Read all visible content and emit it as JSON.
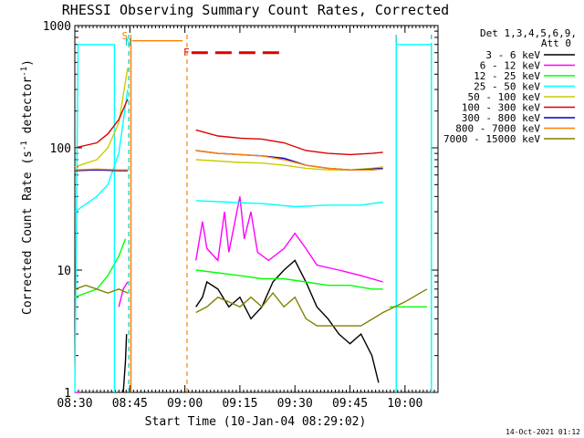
{
  "chart_data": {
    "type": "line",
    "title": "RHESSI Observing Summary Count Rates, Corrected",
    "ylabel_main": "Corrected Count Rate (s",
    "ylabel_sup1": "-1",
    "ylabel_mid": " detector",
    "ylabel_sup2": "-1",
    "ylabel_end": ")",
    "xlabel": "Start Time (10-Jan-04 08:29:02)",
    "footer_date": "14-Oct-2021 01:12",
    "x_range_minutes": [
      8.5,
      10.15
    ],
    "ylim": [
      1,
      1000
    ],
    "y_scale": "log",
    "x_ticks": [
      {
        "label": "08:30",
        "t": 8.5
      },
      {
        "label": "08:45",
        "t": 8.75
      },
      {
        "label": "09:00",
        "t": 9.0
      },
      {
        "label": "09:15",
        "t": 9.25
      },
      {
        "label": "09:30",
        "t": 9.5
      },
      {
        "label": "09:45",
        "t": 9.75
      },
      {
        "label": "10:00",
        "t": 10.0
      }
    ],
    "y_ticks": [
      {
        "label": "1",
        "v": 1
      },
      {
        "label": "10",
        "v": 10
      },
      {
        "label": "100",
        "v": 100
      },
      {
        "label": "1000",
        "v": 1000
      }
    ],
    "legend_header": [
      "Det 1,3,4,5,6,9,",
      "Att 0"
    ],
    "legend_position": "right",
    "series": [
      {
        "name": "3 - 6 keV",
        "color": "#000000",
        "segments": [
          [
            [
              8.72,
              1.0
            ],
            [
              8.73,
              1.8
            ],
            [
              8.735,
              3.0
            ]
          ],
          [
            [
              9.05,
              5.0
            ],
            [
              9.08,
              6.0
            ],
            [
              9.1,
              8.0
            ],
            [
              9.15,
              7.0
            ],
            [
              9.2,
              5.0
            ],
            [
              9.25,
              6.0
            ],
            [
              9.3,
              4.0
            ],
            [
              9.35,
              5.0
            ],
            [
              9.4,
              8.0
            ],
            [
              9.45,
              10.0
            ],
            [
              9.5,
              12.0
            ],
            [
              9.55,
              8.0
            ],
            [
              9.6,
              5.0
            ],
            [
              9.65,
              4.0
            ],
            [
              9.7,
              3.0
            ],
            [
              9.75,
              2.5
            ],
            [
              9.8,
              3.0
            ],
            [
              9.85,
              2.0
            ],
            [
              9.88,
              1.2
            ]
          ]
        ]
      },
      {
        "name": "6 - 12 keV",
        "color": "#ff00ff",
        "segments": [
          [
            [
              8.5,
              1.0
            ],
            [
              8.52,
              1.0
            ]
          ],
          [
            [
              8.7,
              5.0
            ],
            [
              8.72,
              7.0
            ],
            [
              8.74,
              8.0
            ]
          ],
          [
            [
              9.05,
              12.0
            ],
            [
              9.08,
              25.0
            ],
            [
              9.1,
              15.0
            ],
            [
              9.15,
              12.0
            ],
            [
              9.18,
              30.0
            ],
            [
              9.2,
              14.0
            ],
            [
              9.25,
              40.0
            ],
            [
              9.27,
              18.0
            ],
            [
              9.3,
              30.0
            ],
            [
              9.33,
              14.0
            ],
            [
              9.38,
              12.0
            ],
            [
              9.45,
              15.0
            ],
            [
              9.5,
              20.0
            ],
            [
              9.55,
              15.0
            ],
            [
              9.6,
              11.0
            ],
            [
              9.7,
              10.0
            ],
            [
              9.8,
              9.0
            ],
            [
              9.9,
              8.0
            ]
          ]
        ]
      },
      {
        "name": "12 - 25 keV",
        "color": "#00ff00",
        "segments": [
          [
            [
              8.5,
              6.0
            ],
            [
              8.55,
              6.5
            ],
            [
              8.6,
              7.0
            ],
            [
              8.65,
              9.0
            ],
            [
              8.7,
              13.0
            ],
            [
              8.73,
              18.0
            ]
          ],
          [
            [
              9.05,
              10.0
            ],
            [
              9.15,
              9.5
            ],
            [
              9.25,
              9.0
            ],
            [
              9.35,
              8.5
            ],
            [
              9.45,
              8.5
            ],
            [
              9.55,
              8.0
            ],
            [
              9.65,
              7.5
            ],
            [
              9.75,
              7.5
            ],
            [
              9.85,
              7.0
            ],
            [
              9.9,
              7.0
            ]
          ],
          [
            [
              9.93,
              5.0
            ],
            [
              10.1,
              5.0
            ]
          ]
        ]
      },
      {
        "name": "25 - 50 keV",
        "color": "#00ffff",
        "segments": [
          [
            [
              8.5,
              1.0
            ],
            [
              8.515,
              700.0
            ],
            [
              8.68,
              700.0
            ],
            [
              8.68,
              1.0
            ]
          ],
          [
            [
              8.5,
              30.0
            ],
            [
              8.6,
              40.0
            ],
            [
              8.65,
              50.0
            ],
            [
              8.7,
              90.0
            ],
            [
              8.74,
              300.0
            ]
          ],
          [
            [
              9.05,
              37.0
            ],
            [
              9.2,
              36.0
            ],
            [
              9.35,
              35.0
            ],
            [
              9.5,
              33.0
            ],
            [
              9.65,
              34.0
            ],
            [
              9.8,
              34.0
            ],
            [
              9.9,
              36.0
            ]
          ],
          [
            [
              9.96,
              1.0
            ],
            [
              9.96,
              700.0
            ],
            [
              10.12,
              700.0
            ],
            [
              10.12,
              1.0
            ]
          ]
        ]
      },
      {
        "name": "50 - 100 keV",
        "color": "#cccc00",
        "segments": [
          [
            [
              8.5,
              70.0
            ],
            [
              8.6,
              80.0
            ],
            [
              8.65,
              100.0
            ],
            [
              8.7,
              160.0
            ],
            [
              8.74,
              450.0
            ]
          ],
          [
            [
              9.05,
              80.0
            ],
            [
              9.15,
              78.0
            ],
            [
              9.25,
              76.0
            ],
            [
              9.35,
              75.0
            ],
            [
              9.45,
              72.0
            ],
            [
              9.55,
              68.0
            ],
            [
              9.65,
              66.0
            ],
            [
              9.75,
              66.0
            ],
            [
              9.85,
              68.0
            ],
            [
              9.9,
              70.0
            ]
          ]
        ]
      },
      {
        "name": "100 - 300 keV",
        "color": "#dd0000",
        "segments": [
          [
            [
              8.5,
              100.0
            ],
            [
              8.6,
              110.0
            ],
            [
              8.65,
              130.0
            ],
            [
              8.7,
              170.0
            ],
            [
              8.74,
              250.0
            ]
          ],
          [
            [
              9.05,
              140.0
            ],
            [
              9.15,
              125.0
            ],
            [
              9.25,
              120.0
            ],
            [
              9.35,
              118.0
            ],
            [
              9.45,
              110.0
            ],
            [
              9.55,
              95.0
            ],
            [
              9.65,
              90.0
            ],
            [
              9.75,
              88.0
            ],
            [
              9.85,
              90.0
            ],
            [
              9.9,
              92.0
            ]
          ]
        ]
      },
      {
        "name": "300 - 800 keV",
        "color": "#0000cc",
        "segments": [
          [
            [
              8.5,
              65.0
            ],
            [
              8.6,
              66.0
            ],
            [
              8.7,
              65.0
            ],
            [
              8.74,
              65.0
            ]
          ],
          [
            [
              9.05,
              95.0
            ],
            [
              9.15,
              90.0
            ],
            [
              9.25,
              88.0
            ],
            [
              9.35,
              86.0
            ],
            [
              9.45,
              82.0
            ],
            [
              9.55,
              72.0
            ],
            [
              9.65,
              68.0
            ],
            [
              9.75,
              66.0
            ],
            [
              9.85,
              67.0
            ],
            [
              9.9,
              68.0
            ]
          ]
        ]
      },
      {
        "name": "800 - 7000 keV",
        "color": "#ff8000",
        "segments": [
          [
            [
              8.5,
              66.0
            ],
            [
              8.6,
              67.0
            ],
            [
              8.7,
              66.0
            ],
            [
              8.74,
              66.0
            ]
          ],
          [
            [
              8.755,
              1.0
            ],
            [
              8.755,
              700.0
            ],
            [
              8.755,
              1.0
            ]
          ],
          [
            [
              8.76,
              750.0
            ],
            [
              8.99,
              750.0
            ]
          ],
          [
            [
              9.05,
              95.0
            ],
            [
              9.15,
              90.0
            ],
            [
              9.25,
              88.0
            ],
            [
              9.35,
              86.0
            ],
            [
              9.45,
              80.0
            ],
            [
              9.55,
              72.0
            ],
            [
              9.65,
              68.0
            ],
            [
              9.75,
              66.0
            ],
            [
              9.85,
              66.0
            ],
            [
              9.9,
              67.0
            ]
          ]
        ]
      },
      {
        "name": "7000 - 15000 keV",
        "color": "#808000",
        "segments": [
          [
            [
              8.5,
              7.0
            ],
            [
              8.55,
              7.5
            ],
            [
              8.6,
              7.0
            ],
            [
              8.65,
              6.5
            ],
            [
              8.7,
              7.0
            ],
            [
              8.74,
              6.5
            ]
          ],
          [
            [
              9.05,
              4.5
            ],
            [
              9.1,
              5.0
            ],
            [
              9.15,
              6.0
            ],
            [
              9.2,
              5.5
            ],
            [
              9.25,
              5.0
            ],
            [
              9.3,
              6.0
            ],
            [
              9.35,
              5.0
            ],
            [
              9.4,
              6.5
            ],
            [
              9.45,
              5.0
            ],
            [
              9.5,
              6.0
            ],
            [
              9.55,
              4.0
            ],
            [
              9.6,
              3.5
            ],
            [
              9.7,
              3.5
            ],
            [
              9.8,
              3.5
            ],
            [
              9.9,
              4.5
            ],
            [
              10.0,
              5.5
            ],
            [
              10.1,
              7.0
            ]
          ]
        ]
      }
    ],
    "annotations": [
      {
        "text": "S",
        "t": 8.73,
        "color": "#ff8000"
      },
      {
        "text": "N",
        "t": 8.745,
        "color": "#00cccc"
      },
      {
        "text": "F",
        "t": 9.01,
        "color": "#dd0000"
      }
    ],
    "flare_bar": {
      "color": "#dd0000",
      "level": 600,
      "t_start": 9.03,
      "t_end": 9.45
    },
    "vertical_markers": [
      {
        "t": 8.745,
        "color": "#00cccc",
        "style": "dashed"
      },
      {
        "t": 8.755,
        "color": "#ff8000",
        "style": "solid"
      },
      {
        "t": 9.01,
        "color": "#ff8000",
        "style": "dashed"
      },
      {
        "t": 9.96,
        "color": "#00cccc",
        "style": "solid"
      },
      {
        "t": 10.12,
        "color": "#00cccc",
        "style": "dashed"
      }
    ]
  }
}
